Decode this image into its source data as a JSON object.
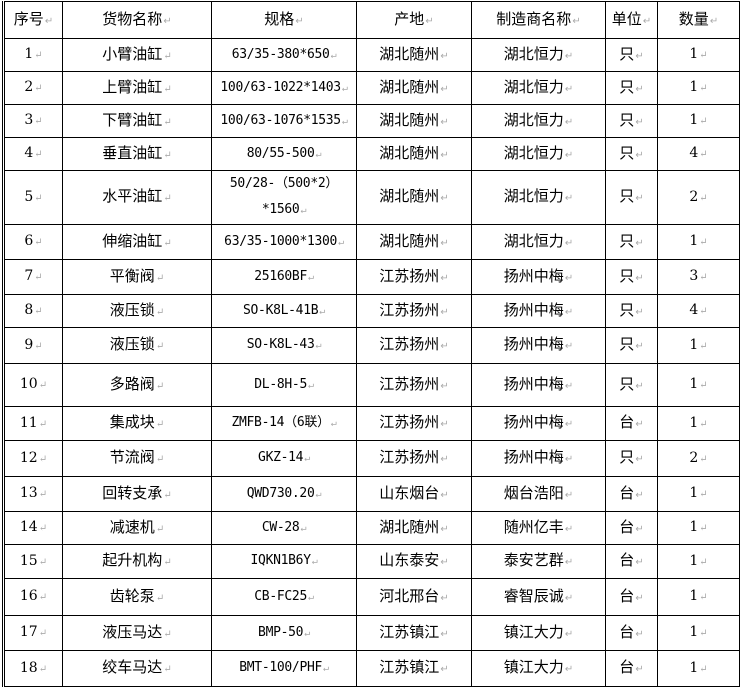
{
  "table": {
    "headers": [
      "序号",
      "货物名称",
      "规格",
      "产地",
      "制造商名称",
      "单位",
      "数量"
    ],
    "rows": [
      [
        "1",
        "小臂油缸",
        "63/35-380*650",
        "湖北随州",
        "湖北恒力",
        "只",
        "1"
      ],
      [
        "2",
        "上臂油缸",
        "100/63-1022*1403",
        "湖北随州",
        "湖北恒力",
        "只",
        "1"
      ],
      [
        "3",
        "下臂油缸",
        "100/63-1076*1535",
        "湖北随州",
        "湖北恒力",
        "只",
        "1"
      ],
      [
        "4",
        "垂直油缸",
        "80/55-500",
        "湖北随州",
        "湖北恒力",
        "只",
        "4"
      ],
      [
        "5",
        "水平油缸",
        "50/28-（500*2）*1560",
        "湖北随州",
        "湖北恒力",
        "只",
        "2"
      ],
      [
        "6",
        "伸缩油缸",
        "63/35-1000*1300",
        "湖北随州",
        "湖北恒力",
        "只",
        "1"
      ],
      [
        "7",
        "平衡阀",
        "25160BF",
        "江苏扬州",
        "扬州中梅",
        "只",
        "3"
      ],
      [
        "8",
        "液压锁",
        "SO-K8L-41B",
        "江苏扬州",
        "扬州中梅",
        "只",
        "4"
      ],
      [
        "9",
        "液压锁",
        "SO-K8L-43",
        "江苏扬州",
        "扬州中梅",
        "只",
        "1"
      ],
      [
        "10",
        "多路阀",
        "DL-8H-5",
        "江苏扬州",
        "扬州中梅",
        "只",
        "1"
      ],
      [
        "11",
        "集成块",
        "ZMFB-14（6联）",
        "江苏扬州",
        "扬州中梅",
        "台",
        "1"
      ],
      [
        "12",
        "节流阀",
        "GKZ-14",
        "江苏扬州",
        "扬州中梅",
        "只",
        "2"
      ],
      [
        "13",
        "回转支承",
        "QWD730.20",
        "山东烟台",
        "烟台浩阳",
        "台",
        "1"
      ],
      [
        "14",
        "减速机",
        "CW-28",
        "湖北随州",
        "随州亿丰",
        "台",
        "1"
      ],
      [
        "15",
        "起升机构",
        "IQKN1B6Y",
        "山东泰安",
        "泰安艺群",
        "台",
        "1"
      ],
      [
        "16",
        "齿轮泵",
        "CB-FC25",
        "河北邢台",
        "睿智辰诚",
        "台",
        "1"
      ],
      [
        "17",
        "液压马达",
        "BMP-50",
        "江苏镇江",
        "镇江大力",
        "台",
        "1"
      ],
      [
        "18",
        "绞车马达",
        "BMT-100/PHF",
        "江苏镇江",
        "镇江大力",
        "台",
        "1"
      ]
    ]
  }
}
